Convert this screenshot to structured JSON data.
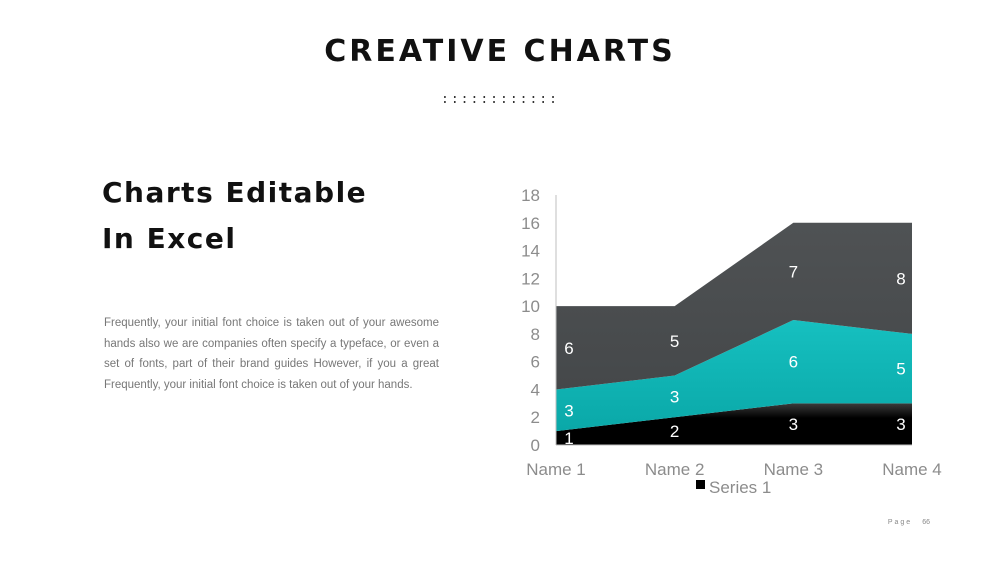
{
  "header": {
    "title": "CREATIVE CHARTS",
    "dots": "::::::::::::"
  },
  "left": {
    "heading_line1": "Charts Editable",
    "heading_line2": "In Excel",
    "body": "Frequently, your initial font choice is taken out of your awesome hands also we are companies often specify a typeface, or even a set of fonts, part of their brand guides However, if you a great Frequently, your initial font choice is taken out of your hands."
  },
  "footer": {
    "page_label": "Page",
    "page_number": "66"
  },
  "chart_data": {
    "type": "area",
    "stacked": true,
    "categories": [
      "Name 1",
      "Name 2",
      "Name 3",
      "Name 4"
    ],
    "series": [
      {
        "name": "Series 1",
        "values": [
          1,
          2,
          3,
          3
        ],
        "color": "#000000"
      },
      {
        "name": "",
        "values": [
          3,
          3,
          6,
          5
        ],
        "color": "#10b5b5"
      },
      {
        "name": "",
        "values": [
          6,
          5,
          7,
          8
        ],
        "color": "#4a4d4f"
      }
    ],
    "yticks": [
      0,
      2,
      4,
      6,
      8,
      10,
      12,
      14,
      16,
      18
    ],
    "ylim": [
      0,
      18
    ],
    "legend": "bottom",
    "grid": false
  }
}
